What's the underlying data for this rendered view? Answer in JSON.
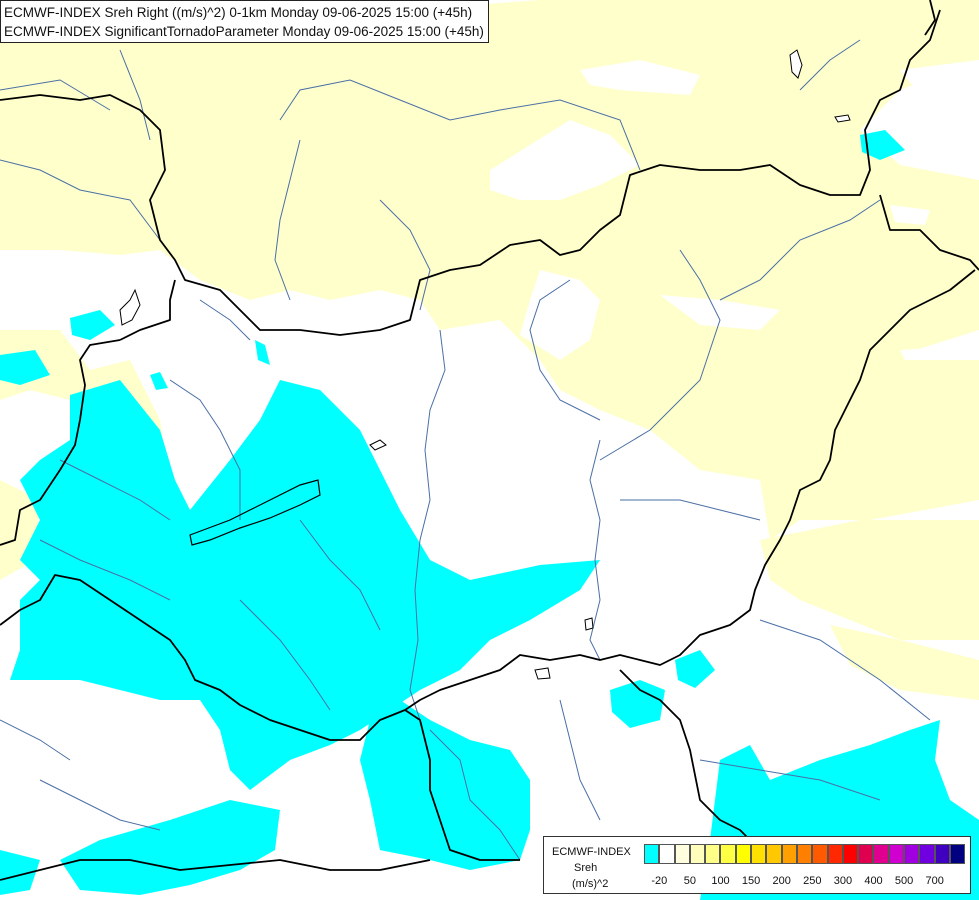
{
  "title": {
    "line1": "ECMWF-INDEX Sreh Right ((m/s)^2) 0-1km Monday 09-06-2025 15:00 (+45h)",
    "line2": "ECMWF-INDEX SignificantTornadoParameter Monday 09-06-2025 15:00 (+45h)"
  },
  "legend": {
    "source": "ECMWF-INDEX",
    "variable": "Sreh",
    "unit": "(m/s)^2",
    "colors": [
      "#00ffff",
      "#ffffff",
      "#ffffe0",
      "#ffffbb",
      "#ffff88",
      "#ffff44",
      "#ffff00",
      "#ffe000",
      "#ffc800",
      "#ffa000",
      "#ff8000",
      "#ff5a00",
      "#ff2800",
      "#ff0000",
      "#e00050",
      "#e00090",
      "#d000d0",
      "#a000e0",
      "#7000e0",
      "#4000c0",
      "#000080"
    ],
    "ticks": [
      "-20",
      "50",
      "100",
      "150",
      "200",
      "250",
      "300",
      "400",
      "500",
      "700"
    ]
  },
  "colors": {
    "cyan_band": "#00ffff",
    "yellow_band": "#ffffcc",
    "rivers": "#4a6fa5",
    "borders": "#000000"
  }
}
